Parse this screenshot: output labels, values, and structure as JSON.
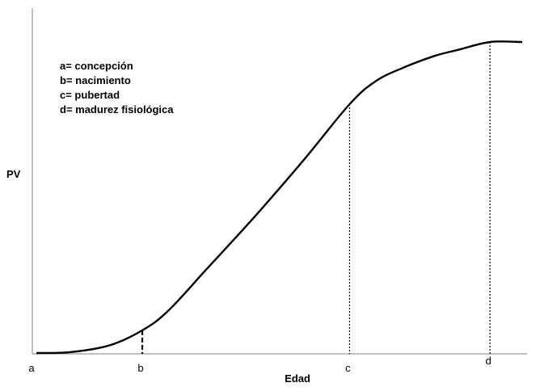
{
  "chart_data": {
    "type": "line",
    "title": "",
    "xlabel": "Edad",
    "ylabel": "PV",
    "xlim": [
      0,
      100
    ],
    "ylim": [
      0,
      100
    ],
    "grid": false,
    "legend_position": "top-left",
    "legend": [
      {
        "text": "a= concepción"
      },
      {
        "text": "b= nacimiento"
      },
      {
        "text": "c= pubertad"
      },
      {
        "text": "d= madurez fisiológica"
      }
    ],
    "x_markers": [
      {
        "label": "a",
        "x": 0
      },
      {
        "label": "b",
        "x": 21.7
      },
      {
        "label": "c",
        "x": 64.5
      },
      {
        "label": "d",
        "x": 93.5
      }
    ],
    "series": [
      {
        "values": [
          {
            "x": 0,
            "y": 0
          },
          {
            "x": 7,
            "y": 0.3
          },
          {
            "x": 15,
            "y": 2.5
          },
          {
            "x": 21.7,
            "y": 7.3
          },
          {
            "x": 27,
            "y": 13.5
          },
          {
            "x": 35,
            "y": 27
          },
          {
            "x": 45,
            "y": 44
          },
          {
            "x": 55,
            "y": 62
          },
          {
            "x": 64.5,
            "y": 80
          },
          {
            "x": 70,
            "y": 87.5
          },
          {
            "x": 76,
            "y": 92
          },
          {
            "x": 82,
            "y": 95.5
          },
          {
            "x": 87,
            "y": 97.5
          },
          {
            "x": 93.5,
            "y": 100
          },
          {
            "x": 100,
            "y": 100
          }
        ]
      }
    ]
  },
  "colors": {
    "line": "#000000",
    "axis": "#9a9a9a"
  }
}
